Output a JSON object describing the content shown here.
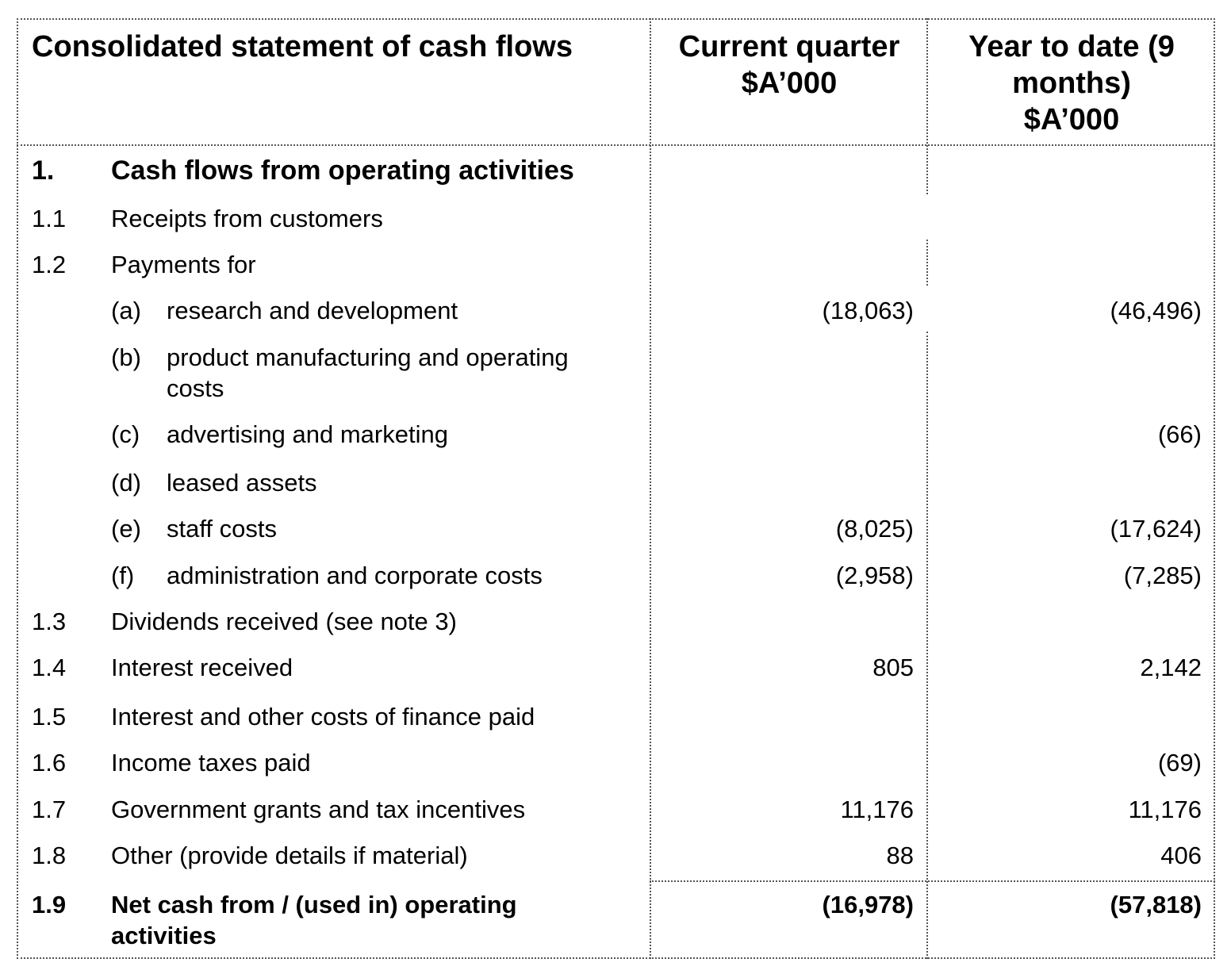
{
  "header": {
    "title": "Consolidated statement of cash flows",
    "col1_line1": "Current quarter",
    "col1_line2": "$A’000",
    "col2_line1": "Year to date (9",
    "col2_line2": "months)",
    "col2_line3": "$A’000"
  },
  "section": {
    "number": "1.",
    "title": "Cash flows from operating activities"
  },
  "rows": [
    {
      "num": "1.1",
      "label": "Receipts from customers",
      "current": "",
      "ytd": ""
    },
    {
      "num": "1.2",
      "label": "Payments for",
      "current": "",
      "ytd": ""
    },
    {
      "letter": "(a)",
      "label": "research and development",
      "current": "(18,063)",
      "ytd": "(46,496)"
    },
    {
      "letter": "(b)",
      "label_line1": "product manufacturing and operating",
      "label_line2": "costs",
      "current": "",
      "ytd": ""
    },
    {
      "letter": "(c)",
      "label": "advertising and marketing",
      "current": "",
      "ytd": "(66)"
    },
    {
      "letter": "(d)",
      "label": "leased assets",
      "current": "",
      "ytd": ""
    },
    {
      "letter": "(e)",
      "label": "staff costs",
      "current": "(8,025)",
      "ytd": "(17,624)"
    },
    {
      "letter": "(f)",
      "label": "administration and corporate costs",
      "current": "(2,958)",
      "ytd": "(7,285)"
    },
    {
      "num": "1.3",
      "label": "Dividends received (see note 3)",
      "current": "",
      "ytd": ""
    },
    {
      "num": "1.4",
      "label": "Interest received",
      "current": "805",
      "ytd": "2,142"
    },
    {
      "num": "1.5",
      "label": "Interest and other costs of finance paid",
      "current": "",
      "ytd": ""
    },
    {
      "num": "1.6",
      "label": "Income taxes paid",
      "current": "",
      "ytd": "(69)"
    },
    {
      "num": "1.7",
      "label": "Government grants and tax incentives",
      "current": "11,176",
      "ytd": "11,176"
    },
    {
      "num": "1.8",
      "label": "Other (provide details if material)",
      "current": "88",
      "ytd": "406"
    }
  ],
  "total": {
    "num": "1.9",
    "label_line1": "Net cash from / (used in) operating",
    "label_line2": "activities",
    "current": "(16,978)",
    "ytd": "(57,818)"
  }
}
